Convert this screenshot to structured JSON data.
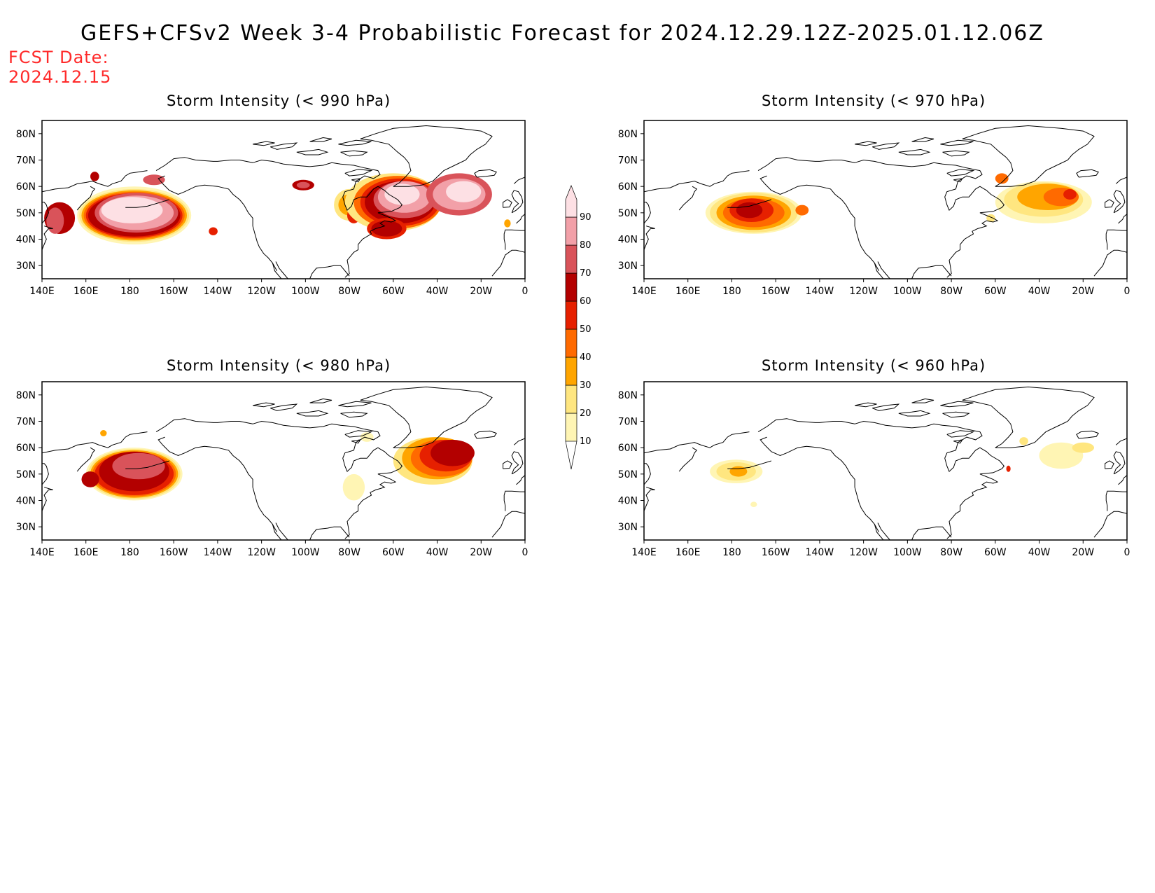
{
  "title": "GEFS+CFSv2 Week 3-4 Probabilistic Forecast for 2024.12.29.12Z-2025.01.12.06Z",
  "fcst_date_label": "FCST Date:",
  "fcst_date": "2024.12.15",
  "lon_ticks": [
    "140E",
    "160E",
    "180",
    "160W",
    "140W",
    "120W",
    "100W",
    "80W",
    "60W",
    "40W",
    "20W",
    "0"
  ],
  "lat_ticks": [
    "80N",
    "70N",
    "60N",
    "50N",
    "40N",
    "30N"
  ],
  "colorbar": {
    "levels": [
      "10",
      "20",
      "30",
      "40",
      "50",
      "60",
      "70",
      "80",
      "90"
    ],
    "colors": [
      "#fff5b4",
      "#ffe680",
      "#ffa500",
      "#ff6a00",
      "#e62000",
      "#b30000",
      "#d9535a",
      "#f2a0a8",
      "#fde0e4"
    ]
  },
  "panels": [
    {
      "id": "p990",
      "title": "Storm Intensity (< 990 hPa)"
    },
    {
      "id": "p970",
      "title": "Storm Intensity (< 970 hPa)"
    },
    {
      "id": "p980",
      "title": "Storm Intensity (< 980 hPa)"
    },
    {
      "id": "p960",
      "title": "Storm Intensity (< 960 hPa)"
    }
  ]
}
